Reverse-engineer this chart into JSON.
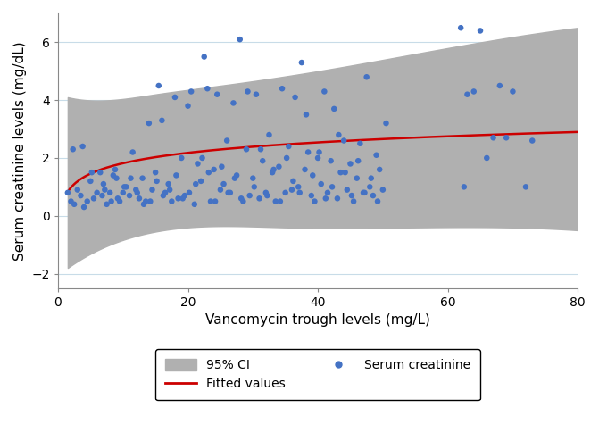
{
  "xlabel": "Vancomycin trough levels (mg/L)",
  "ylabel": "Serum creatinine levels (mg/dL)",
  "xlim": [
    0,
    80
  ],
  "ylim": [
    -2.5,
    7.0
  ],
  "xticks": [
    0,
    20,
    40,
    60,
    80
  ],
  "yticks": [
    -2,
    0,
    2,
    4,
    6
  ],
  "scatter_color": "#4472c4",
  "fit_color": "#cc0000",
  "ci_color": "#b0b0b0",
  "fit_params": {
    "a": 0.62,
    "b": 0.52
  },
  "ci_upper_intercept": 4.1,
  "ci_upper_slope": 0.025,
  "ci_lower_intercept": -1.8,
  "ci_lower_slope": 0.02,
  "scatter_points": [
    [
      1.5,
      0.8
    ],
    [
      2.0,
      0.5
    ],
    [
      2.3,
      2.3
    ],
    [
      2.5,
      0.4
    ],
    [
      3.0,
      0.9
    ],
    [
      3.5,
      0.7
    ],
    [
      3.8,
      2.4
    ],
    [
      4.0,
      0.3
    ],
    [
      4.5,
      0.5
    ],
    [
      5.0,
      1.2
    ],
    [
      5.2,
      1.5
    ],
    [
      5.5,
      0.6
    ],
    [
      6.0,
      0.8
    ],
    [
      6.5,
      1.5
    ],
    [
      6.8,
      0.7
    ],
    [
      7.0,
      1.1
    ],
    [
      7.2,
      0.9
    ],
    [
      7.5,
      0.4
    ],
    [
      8.0,
      0.8
    ],
    [
      8.2,
      0.5
    ],
    [
      8.5,
      1.4
    ],
    [
      8.8,
      1.6
    ],
    [
      9.0,
      1.3
    ],
    [
      9.2,
      0.6
    ],
    [
      9.5,
      0.5
    ],
    [
      10.0,
      0.8
    ],
    [
      10.2,
      1.0
    ],
    [
      10.5,
      1.0
    ],
    [
      11.0,
      0.7
    ],
    [
      11.2,
      1.3
    ],
    [
      11.5,
      2.2
    ],
    [
      12.0,
      0.9
    ],
    [
      12.2,
      0.8
    ],
    [
      12.5,
      0.6
    ],
    [
      13.0,
      1.3
    ],
    [
      13.2,
      0.4
    ],
    [
      13.5,
      0.5
    ],
    [
      14.0,
      3.2
    ],
    [
      14.2,
      0.5
    ],
    [
      14.5,
      0.9
    ],
    [
      15.0,
      1.5
    ],
    [
      15.2,
      1.2
    ],
    [
      15.5,
      4.5
    ],
    [
      16.0,
      3.3
    ],
    [
      16.2,
      0.7
    ],
    [
      16.5,
      0.8
    ],
    [
      17.0,
      1.1
    ],
    [
      17.2,
      0.9
    ],
    [
      17.5,
      0.5
    ],
    [
      18.0,
      4.1
    ],
    [
      18.2,
      1.4
    ],
    [
      18.5,
      0.6
    ],
    [
      19.0,
      2.0
    ],
    [
      19.2,
      0.6
    ],
    [
      19.5,
      0.7
    ],
    [
      20.0,
      3.8
    ],
    [
      20.2,
      0.8
    ],
    [
      20.5,
      4.3
    ],
    [
      21.0,
      0.4
    ],
    [
      21.2,
      1.1
    ],
    [
      21.5,
      1.8
    ],
    [
      22.0,
      1.2
    ],
    [
      22.2,
      2.0
    ],
    [
      22.5,
      5.5
    ],
    [
      23.0,
      4.4
    ],
    [
      23.2,
      1.5
    ],
    [
      23.5,
      0.5
    ],
    [
      24.0,
      1.6
    ],
    [
      24.2,
      0.5
    ],
    [
      24.5,
      4.2
    ],
    [
      25.0,
      0.9
    ],
    [
      25.2,
      1.7
    ],
    [
      25.5,
      1.1
    ],
    [
      26.0,
      2.6
    ],
    [
      26.2,
      0.8
    ],
    [
      26.5,
      0.8
    ],
    [
      27.0,
      3.9
    ],
    [
      27.2,
      1.3
    ],
    [
      27.5,
      1.4
    ],
    [
      28.0,
      6.1
    ],
    [
      28.2,
      0.6
    ],
    [
      28.5,
      0.5
    ],
    [
      29.0,
      2.3
    ],
    [
      29.2,
      4.3
    ],
    [
      29.5,
      0.7
    ],
    [
      30.0,
      1.3
    ],
    [
      30.2,
      1.0
    ],
    [
      30.5,
      4.2
    ],
    [
      31.0,
      0.6
    ],
    [
      31.2,
      2.3
    ],
    [
      31.5,
      1.9
    ],
    [
      32.0,
      0.8
    ],
    [
      32.2,
      0.7
    ],
    [
      32.5,
      2.8
    ],
    [
      33.0,
      1.5
    ],
    [
      33.2,
      1.6
    ],
    [
      33.5,
      0.5
    ],
    [
      34.0,
      1.7
    ],
    [
      34.2,
      0.5
    ],
    [
      34.5,
      4.4
    ],
    [
      35.0,
      0.8
    ],
    [
      35.2,
      2.0
    ],
    [
      35.5,
      2.4
    ],
    [
      36.0,
      0.9
    ],
    [
      36.2,
      1.2
    ],
    [
      36.5,
      4.1
    ],
    [
      37.0,
      1.0
    ],
    [
      37.2,
      0.8
    ],
    [
      37.5,
      5.3
    ],
    [
      38.0,
      1.6
    ],
    [
      38.2,
      3.5
    ],
    [
      38.5,
      2.2
    ],
    [
      39.0,
      0.7
    ],
    [
      39.2,
      1.4
    ],
    [
      39.5,
      0.5
    ],
    [
      40.0,
      2.0
    ],
    [
      40.2,
      2.2
    ],
    [
      40.5,
      1.1
    ],
    [
      41.0,
      4.3
    ],
    [
      41.2,
      0.6
    ],
    [
      41.5,
      0.8
    ],
    [
      42.0,
      1.9
    ],
    [
      42.2,
      1.0
    ],
    [
      42.5,
      3.7
    ],
    [
      43.0,
      0.6
    ],
    [
      43.2,
      2.8
    ],
    [
      43.5,
      1.5
    ],
    [
      44.0,
      2.6
    ],
    [
      44.2,
      1.5
    ],
    [
      44.5,
      0.9
    ],
    [
      45.0,
      1.8
    ],
    [
      45.2,
      0.7
    ],
    [
      45.5,
      0.5
    ],
    [
      46.0,
      1.3
    ],
    [
      46.2,
      1.9
    ],
    [
      46.5,
      2.5
    ],
    [
      47.0,
      0.8
    ],
    [
      47.2,
      0.8
    ],
    [
      47.5,
      4.8
    ],
    [
      48.0,
      1.0
    ],
    [
      48.2,
      1.3
    ],
    [
      48.5,
      0.7
    ],
    [
      49.0,
      2.1
    ],
    [
      49.2,
      0.5
    ],
    [
      49.5,
      1.6
    ],
    [
      50.0,
      0.9
    ],
    [
      50.5,
      3.2
    ],
    [
      62.0,
      6.5
    ],
    [
      62.5,
      1.0
    ],
    [
      63.0,
      4.2
    ],
    [
      64.0,
      4.3
    ],
    [
      65.0,
      6.4
    ],
    [
      66.0,
      2.0
    ],
    [
      67.0,
      2.7
    ],
    [
      68.0,
      4.5
    ],
    [
      69.0,
      2.7
    ],
    [
      70.0,
      4.3
    ],
    [
      72.0,
      1.0
    ],
    [
      73.0,
      2.6
    ]
  ],
  "legend_labels": [
    "95% CI",
    "Fitted values",
    "Serum creatinine"
  ]
}
